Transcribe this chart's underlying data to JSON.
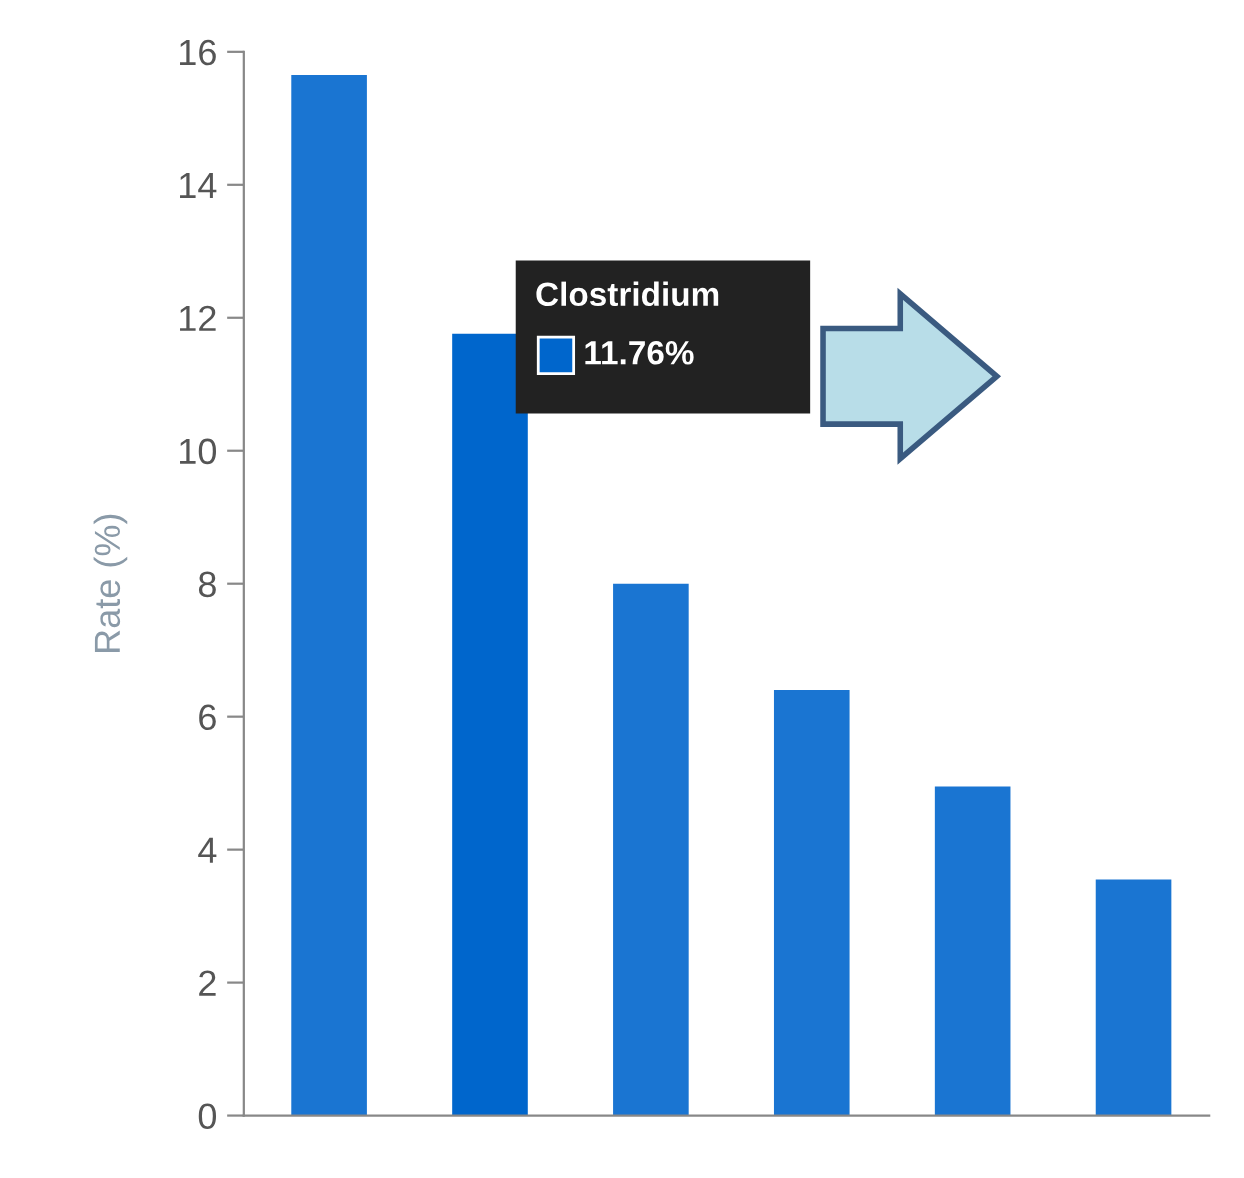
{
  "chart_data": {
    "type": "bar",
    "ylabel": "Rate (%)",
    "categories": [
      null,
      null,
      null,
      null,
      null,
      null
    ],
    "values": [
      15.65,
      11.76,
      8.0,
      6.4,
      4.95,
      3.55
    ],
    "colors": [
      "#1a75d2",
      "#0066cc",
      "#1a75d2",
      "#1a75d2",
      "#1a75d2",
      "#1a75d2"
    ],
    "annotations": [
      "Clostridium",
      "11.76%"
    ],
    "ylim": [
      0,
      16
    ],
    "yticks": [
      0,
      2,
      4,
      6,
      8,
      10,
      12,
      14,
      16
    ],
    "grid": false
  }
}
